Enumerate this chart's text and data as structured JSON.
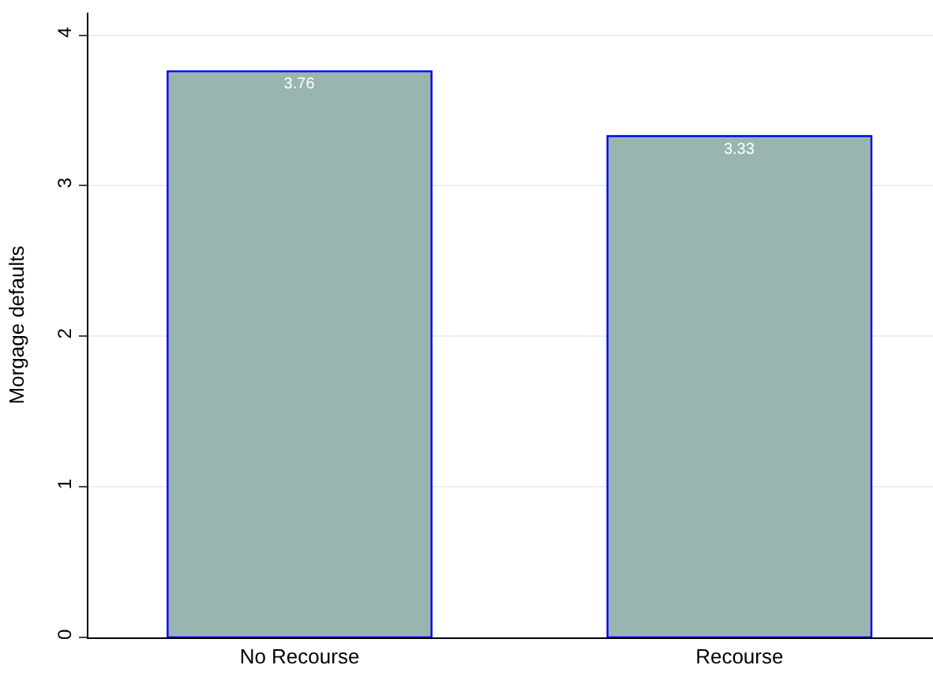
{
  "chart_data": {
    "type": "bar",
    "ylabel": "Morgage defaults",
    "categories": [
      "No Recourse",
      "Recourse"
    ],
    "values": [
      3.76,
      3.33
    ],
    "color": "#98b5af",
    "ylim": [
      0,
      4.15
    ],
    "yticks": [
      0,
      1,
      2,
      3,
      4
    ],
    "grid": "y",
    "data_labels": true
  }
}
